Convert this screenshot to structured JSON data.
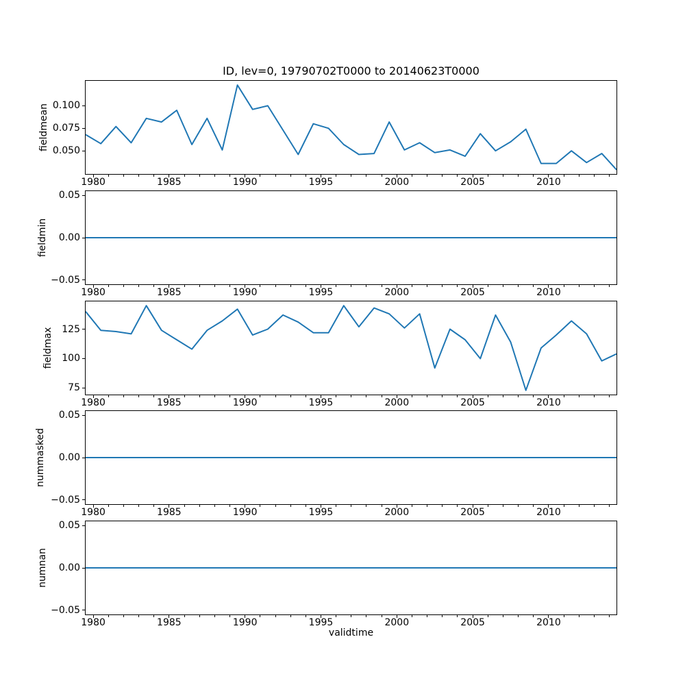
{
  "figure": {
    "title": "ID, lev=0, 19790702T0000 to 20140623T0000",
    "background_color": "#ffffff",
    "text_color": "#000000"
  },
  "chart_data": {
    "type": "line",
    "title": "ID, lev=0, 19790702T0000 to 20140623T0000",
    "xlabel": "validtime",
    "line_color": "#1f77b4",
    "grid": false,
    "legend": "none",
    "x_range": [
      1979.5,
      2014.47
    ],
    "x_major_ticks": [
      1980,
      1985,
      1990,
      1995,
      2000,
      2005,
      2010
    ],
    "x_major_tick_labels": [
      "1980",
      "1985",
      "1990",
      "1995",
      "2000",
      "2005",
      "2010"
    ],
    "x_minor_tick_step_years": 1,
    "x": [
      1979.5,
      1980.5,
      1981.5,
      1982.5,
      1983.5,
      1984.5,
      1985.5,
      1986.5,
      1987.5,
      1988.5,
      1989.5,
      1990.5,
      1991.5,
      1992.5,
      1993.5,
      1994.5,
      1995.5,
      1996.5,
      1997.5,
      1998.5,
      1999.5,
      2000.5,
      2001.5,
      2002.5,
      2003.5,
      2004.5,
      2005.5,
      2006.5,
      2007.5,
      2008.5,
      2009.5,
      2010.5,
      2011.5,
      2012.5,
      2013.5,
      2014.47
    ],
    "series": [
      {
        "name": "fieldmean",
        "ylabel": "fieldmean",
        "ylim": [
          0.0243,
          0.1277
        ],
        "yticks": [
          0.05,
          0.075,
          0.1
        ],
        "ytick_labels": [
          "0.050",
          "0.075",
          "0.100"
        ],
        "y": [
          0.068,
          0.058,
          0.077,
          0.059,
          0.086,
          0.082,
          0.095,
          0.057,
          0.086,
          0.051,
          0.123,
          0.096,
          0.1,
          0.073,
          0.046,
          0.08,
          0.075,
          0.057,
          0.046,
          0.047,
          0.082,
          0.051,
          0.059,
          0.048,
          0.051,
          0.044,
          0.069,
          0.05,
          0.06,
          0.074,
          0.036,
          0.036,
          0.05,
          0.037,
          0.047,
          0.029
        ]
      },
      {
        "name": "fieldmin",
        "ylabel": "fieldmin",
        "ylim": [
          -0.055,
          0.055
        ],
        "yticks": [
          -0.05,
          0.0,
          0.05
        ],
        "ytick_labels": [
          "−0.05",
          "0.00",
          "0.05"
        ],
        "y": [
          0,
          0,
          0,
          0,
          0,
          0,
          0,
          0,
          0,
          0,
          0,
          0,
          0,
          0,
          0,
          0,
          0,
          0,
          0,
          0,
          0,
          0,
          0,
          0,
          0,
          0,
          0,
          0,
          0,
          0,
          0,
          0,
          0,
          0,
          0,
          0
        ]
      },
      {
        "name": "fieldmax",
        "ylabel": "fieldmax",
        "ylim": [
          69.4,
          148.6
        ],
        "yticks": [
          75,
          100,
          125
        ],
        "ytick_labels": [
          "75",
          "100",
          "125"
        ],
        "y": [
          140,
          124,
          123,
          121,
          145,
          124,
          116,
          108,
          124,
          132,
          142,
          120,
          125,
          137,
          131,
          122,
          122,
          145,
          127,
          143,
          138,
          126,
          138,
          92,
          125,
          116,
          100,
          137,
          114,
          73,
          109,
          120,
          132,
          121,
          98,
          104
        ]
      },
      {
        "name": "nummasked",
        "ylabel": "nummasked",
        "ylim": [
          -0.055,
          0.055
        ],
        "yticks": [
          -0.05,
          0.0,
          0.05
        ],
        "ytick_labels": [
          "−0.05",
          "0.00",
          "0.05"
        ],
        "y": [
          0,
          0,
          0,
          0,
          0,
          0,
          0,
          0,
          0,
          0,
          0,
          0,
          0,
          0,
          0,
          0,
          0,
          0,
          0,
          0,
          0,
          0,
          0,
          0,
          0,
          0,
          0,
          0,
          0,
          0,
          0,
          0,
          0,
          0,
          0,
          0
        ]
      },
      {
        "name": "numnan",
        "ylabel": "numnan",
        "ylim": [
          -0.055,
          0.055
        ],
        "yticks": [
          -0.05,
          0.0,
          0.05
        ],
        "ytick_labels": [
          "−0.05",
          "0.00",
          "0.05"
        ],
        "y": [
          0,
          0,
          0,
          0,
          0,
          0,
          0,
          0,
          0,
          0,
          0,
          0,
          0,
          0,
          0,
          0,
          0,
          0,
          0,
          0,
          0,
          0,
          0,
          0,
          0,
          0,
          0,
          0,
          0,
          0,
          0,
          0,
          0,
          0,
          0,
          0
        ]
      }
    ]
  }
}
